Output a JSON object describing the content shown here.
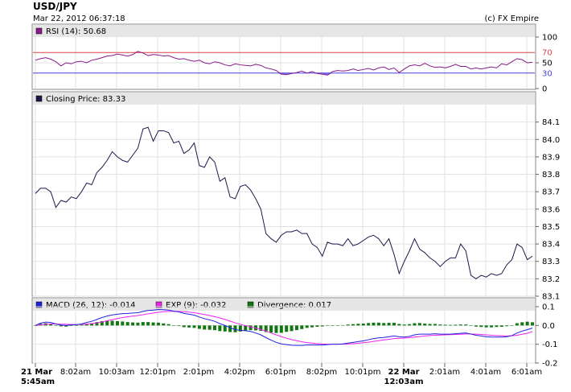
{
  "header": {
    "title": "USD/JPY",
    "timestamp": "Mar 22, 2012 06:37:18",
    "credit": "(c) FX Empire"
  },
  "colors": {
    "price": "#1a1a4a",
    "rsi": "#8a1a8a",
    "macd": "#2222dd",
    "exp": "#ee22ee",
    "divergence": "#117711",
    "rsi_upper": "#dd4444",
    "rsi_lower": "#4444dd",
    "panel_header": "#e6e6e6"
  },
  "chart_data": [
    {
      "type": "line",
      "panel": "rsi",
      "legend": "RSI (14): 50.68",
      "ylim": [
        0,
        100
      ],
      "yticks": [
        0,
        30,
        50,
        70,
        100
      ],
      "reference_lines": [
        30,
        70
      ],
      "values": [
        55,
        58,
        60,
        57,
        52,
        44,
        50,
        48,
        52,
        53,
        50,
        55,
        57,
        60,
        63,
        64,
        67,
        65,
        63,
        66,
        72,
        69,
        64,
        66,
        65,
        63,
        64,
        60,
        57,
        58,
        55,
        53,
        55,
        50,
        48,
        52,
        50,
        46,
        44,
        48,
        46,
        45,
        44,
        47,
        45,
        40,
        38,
        35,
        28,
        27,
        29,
        31,
        34,
        30,
        33,
        29,
        28,
        26,
        33,
        35,
        34,
        35,
        38,
        35,
        37,
        39,
        36,
        40,
        42,
        37,
        40,
        31,
        38,
        44,
        46,
        44,
        49,
        44,
        41,
        42,
        40,
        43,
        47,
        43,
        43,
        38,
        40,
        38,
        40,
        42,
        40,
        48,
        46,
        52,
        58,
        56,
        50,
        51
      ],
      "grid": true
    },
    {
      "type": "line",
      "panel": "price",
      "legend": "Closing Price: 83.33",
      "ylim": [
        83.1,
        84.2
      ],
      "yticks": [
        83.1,
        83.2,
        83.3,
        83.4,
        83.5,
        83.6,
        83.7,
        83.8,
        83.9,
        84.0,
        84.1
      ],
      "values": [
        83.69,
        83.72,
        83.72,
        83.7,
        83.61,
        83.65,
        83.64,
        83.67,
        83.66,
        83.7,
        83.75,
        83.74,
        83.81,
        83.84,
        83.88,
        83.93,
        83.9,
        83.88,
        83.87,
        83.91,
        83.95,
        84.06,
        84.07,
        83.99,
        84.05,
        84.05,
        84.04,
        83.98,
        83.99,
        83.92,
        83.94,
        83.98,
        83.85,
        83.84,
        83.9,
        83.87,
        83.76,
        83.78,
        83.67,
        83.66,
        83.73,
        83.74,
        83.71,
        83.66,
        83.6,
        83.46,
        83.43,
        83.41,
        83.45,
        83.47,
        83.47,
        83.48,
        83.46,
        83.46,
        83.4,
        83.38,
        83.33,
        83.41,
        83.4,
        83.4,
        83.39,
        83.43,
        83.39,
        83.4,
        83.42,
        83.44,
        83.45,
        83.43,
        83.39,
        83.43,
        83.34,
        83.23,
        83.3,
        83.36,
        83.43,
        83.37,
        83.35,
        83.32,
        83.3,
        83.27,
        83.3,
        83.32,
        83.32,
        83.4,
        83.36,
        83.22,
        83.2,
        83.22,
        83.21,
        83.23,
        83.22,
        83.23,
        83.28,
        83.31,
        83.4,
        83.38,
        83.31,
        83.33
      ],
      "grid": true
    },
    {
      "type": "line",
      "panel": "macd",
      "ylim": [
        -0.2,
        0.1
      ],
      "yticks": [
        -0.2,
        -0.1,
        0.0,
        0.1
      ],
      "series": [
        {
          "name": "MACD (26, 12): -0.014",
          "values": [
            0.0,
            0.012,
            0.018,
            0.016,
            0.008,
            0.002,
            0.0,
            0.003,
            0.004,
            0.008,
            0.016,
            0.022,
            0.032,
            0.042,
            0.05,
            0.056,
            0.06,
            0.063,
            0.064,
            0.066,
            0.068,
            0.075,
            0.08,
            0.082,
            0.085,
            0.084,
            0.082,
            0.076,
            0.072,
            0.064,
            0.06,
            0.055,
            0.045,
            0.036,
            0.03,
            0.022,
            0.01,
            0.0,
            -0.012,
            -0.022,
            -0.026,
            -0.028,
            -0.032,
            -0.04,
            -0.05,
            -0.065,
            -0.078,
            -0.09,
            -0.098,
            -0.102,
            -0.105,
            -0.106,
            -0.106,
            -0.104,
            -0.104,
            -0.104,
            -0.104,
            -0.102,
            -0.1,
            -0.1,
            -0.098,
            -0.094,
            -0.09,
            -0.086,
            -0.082,
            -0.076,
            -0.07,
            -0.066,
            -0.064,
            -0.06,
            -0.056,
            -0.06,
            -0.062,
            -0.058,
            -0.05,
            -0.046,
            -0.046,
            -0.046,
            -0.044,
            -0.046,
            -0.046,
            -0.046,
            -0.044,
            -0.042,
            -0.04,
            -0.046,
            -0.052,
            -0.056,
            -0.06,
            -0.062,
            -0.062,
            -0.062,
            -0.06,
            -0.054,
            -0.04,
            -0.03,
            -0.022,
            -0.014
          ]
        },
        {
          "name": "EXP (9): -0.032",
          "values": [
            0.0,
            0.003,
            0.006,
            0.008,
            0.008,
            0.007,
            0.006,
            0.005,
            0.005,
            0.005,
            0.007,
            0.01,
            0.014,
            0.019,
            0.025,
            0.031,
            0.037,
            0.042,
            0.046,
            0.05,
            0.053,
            0.057,
            0.062,
            0.066,
            0.07,
            0.073,
            0.075,
            0.076,
            0.075,
            0.073,
            0.071,
            0.068,
            0.063,
            0.058,
            0.053,
            0.047,
            0.04,
            0.032,
            0.023,
            0.014,
            0.006,
            -0.001,
            -0.007,
            -0.014,
            -0.021,
            -0.03,
            -0.04,
            -0.05,
            -0.059,
            -0.068,
            -0.075,
            -0.081,
            -0.087,
            -0.091,
            -0.094,
            -0.097,
            -0.099,
            -0.1,
            -0.1,
            -0.1,
            -0.1,
            -0.099,
            -0.097,
            -0.095,
            -0.092,
            -0.089,
            -0.085,
            -0.081,
            -0.077,
            -0.074,
            -0.07,
            -0.068,
            -0.067,
            -0.065,
            -0.062,
            -0.059,
            -0.056,
            -0.054,
            -0.052,
            -0.051,
            -0.05,
            -0.049,
            -0.048,
            -0.047,
            -0.045,
            -0.045,
            -0.046,
            -0.048,
            -0.05,
            -0.052,
            -0.054,
            -0.055,
            -0.056,
            -0.055,
            -0.052,
            -0.047,
            -0.042,
            -0.032
          ]
        },
        {
          "name": "Divergence: 0.017",
          "type": "bar",
          "values": [
            0.0,
            0.009,
            0.012,
            0.008,
            0.0,
            -0.005,
            -0.006,
            -0.002,
            -0.001,
            0.003,
            0.009,
            0.012,
            0.018,
            0.023,
            0.025,
            0.025,
            0.023,
            0.021,
            0.018,
            0.016,
            0.015,
            0.018,
            0.018,
            0.016,
            0.015,
            0.011,
            0.007,
            0.0,
            -0.003,
            -0.009,
            -0.011,
            -0.013,
            -0.018,
            -0.022,
            -0.023,
            -0.025,
            -0.03,
            -0.032,
            -0.035,
            -0.036,
            -0.032,
            -0.027,
            -0.025,
            -0.026,
            -0.029,
            -0.035,
            -0.038,
            -0.04,
            -0.039,
            -0.034,
            -0.03,
            -0.025,
            -0.019,
            -0.013,
            -0.01,
            -0.007,
            -0.005,
            -0.002,
            0.0,
            0.0,
            0.002,
            0.005,
            0.007,
            0.009,
            0.01,
            0.013,
            0.015,
            0.015,
            0.013,
            0.014,
            0.014,
            0.008,
            0.005,
            0.007,
            0.012,
            0.013,
            0.01,
            0.008,
            0.008,
            0.005,
            0.004,
            0.003,
            0.004,
            0.005,
            0.005,
            -0.001,
            -0.006,
            -0.008,
            -0.01,
            -0.01,
            -0.008,
            -0.007,
            -0.004,
            0.001,
            0.012,
            0.017,
            0.02,
            0.017
          ]
        }
      ],
      "grid": true
    }
  ],
  "x_axis": {
    "labels": [
      "21 Mar",
      "5:45am",
      "8:02am",
      "10:03am",
      "12:01pm",
      "2:01pm",
      "4:02pm",
      "6:01pm",
      "8:02pm",
      "10:01pm",
      "22 Mar",
      "12:03am",
      "2:01am",
      "4:01am",
      "6:01am"
    ]
  }
}
